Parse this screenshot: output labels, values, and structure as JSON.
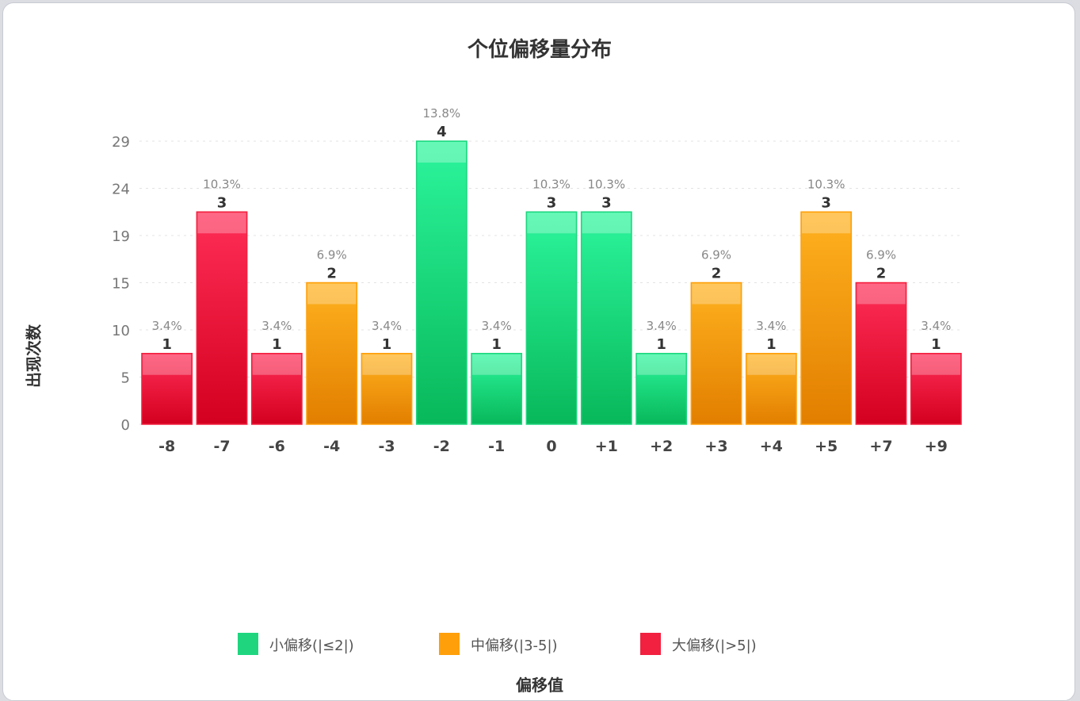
{
  "chart_data": {
    "type": "bar",
    "title": "个位偏移量分布",
    "xlabel": "偏移值",
    "ylabel": "出现次数",
    "categories": [
      "-8",
      "-7",
      "-6",
      "-4",
      "-3",
      "-2",
      "-1",
      "0",
      "+1",
      "+2",
      "+3",
      "+4",
      "+5",
      "+7",
      "+9"
    ],
    "values": [
      1,
      3,
      1,
      2,
      1,
      4,
      1,
      3,
      3,
      1,
      2,
      1,
      3,
      2,
      1
    ],
    "percent_labels": [
      "3.4%",
      "10.3%",
      "3.4%",
      "6.9%",
      "3.4%",
      "13.8%",
      "3.4%",
      "10.3%",
      "10.3%",
      "3.4%",
      "6.9%",
      "3.4%",
      "10.3%",
      "6.9%",
      "3.4%"
    ],
    "groups": [
      "large",
      "large",
      "large",
      "medium",
      "medium",
      "small",
      "small",
      "small",
      "small",
      "small",
      "medium",
      "medium",
      "medium",
      "large",
      "large"
    ],
    "y_ticks": [
      "0",
      "5",
      "10",
      "15",
      "19",
      "24",
      "29"
    ],
    "ylim": [
      0,
      4
    ],
    "grid": true,
    "legend": [
      {
        "key": "small",
        "label": "小偏移(|≤2|)",
        "color": "#1fd67f"
      },
      {
        "key": "medium",
        "label": "中偏移(|3-5|)",
        "color": "#ff9f0a"
      },
      {
        "key": "large",
        "label": "大偏移(|>5|)",
        "color": "#f2213f"
      }
    ],
    "legend_position": "bottom"
  }
}
